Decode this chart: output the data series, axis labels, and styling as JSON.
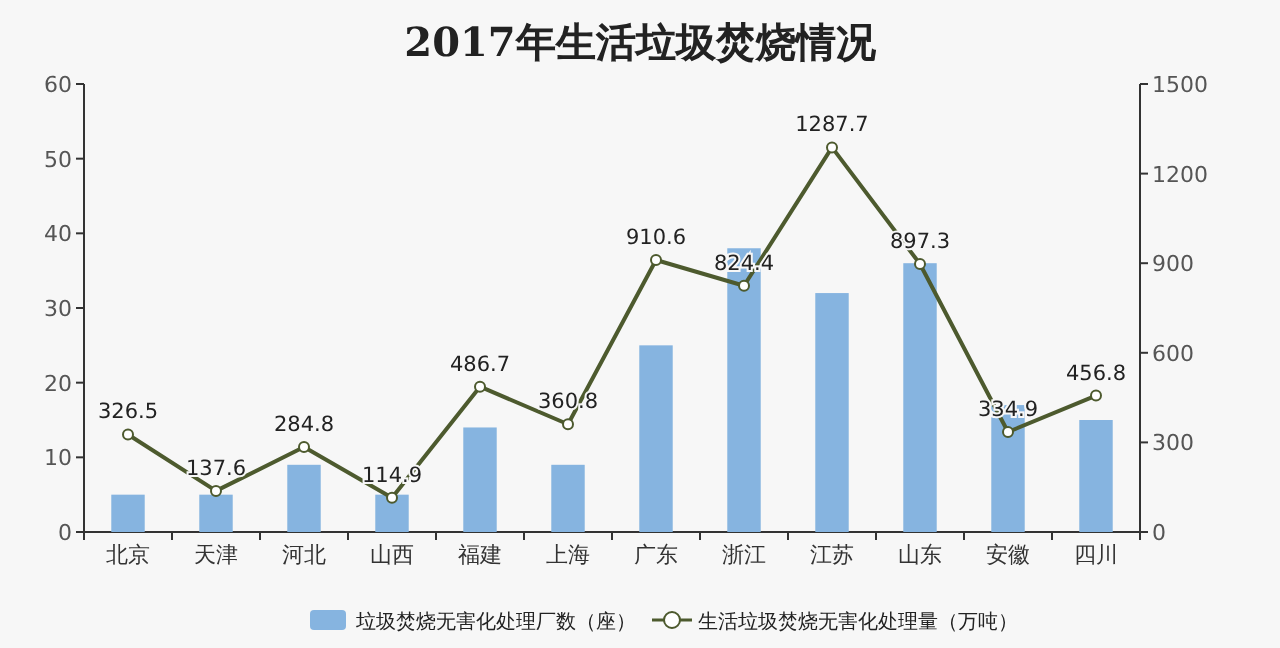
{
  "chart_data": {
    "type": "bar",
    "title": "2017年生活垃圾焚烧情况",
    "categories": [
      "北京",
      "天津",
      "河北",
      "山西",
      "福建",
      "上海",
      "广东",
      "浙江",
      "江苏",
      "山东",
      "安徽",
      "四川"
    ],
    "series": [
      {
        "name": "垃圾焚烧无害化处理厂数（座）",
        "color": "#86b4e0",
        "values": [
          5,
          5,
          9,
          5,
          14,
          9,
          25,
          38,
          32,
          36,
          17,
          15
        ]
      },
      {
        "name": "生活垃圾焚烧无害化处理量（万吨）",
        "type": "line",
        "axis": "y2",
        "color": "#4d5a2e",
        "marker": "circle",
        "values": [
          326.5,
          137.6,
          284.8,
          114.9,
          486.7,
          360.8,
          910.6,
          824.4,
          1287.7,
          897.3,
          334.9,
          456.8
        ],
        "value_labels": [
          "326.5",
          "137.6",
          "284.8",
          "114.9",
          "486.7",
          "360.8",
          "910.6",
          "824.4",
          "1287.7",
          "897.3",
          "334.9",
          "456.8"
        ]
      }
    ],
    "ylim": [
      0,
      60
    ],
    "yticks": [
      0,
      10,
      20,
      30,
      40,
      50,
      60
    ],
    "y2lim": [
      0,
      1500
    ],
    "y2ticks": [
      0,
      300,
      600,
      900,
      1200,
      1500
    ],
    "grid": false,
    "legend": "bottom"
  }
}
